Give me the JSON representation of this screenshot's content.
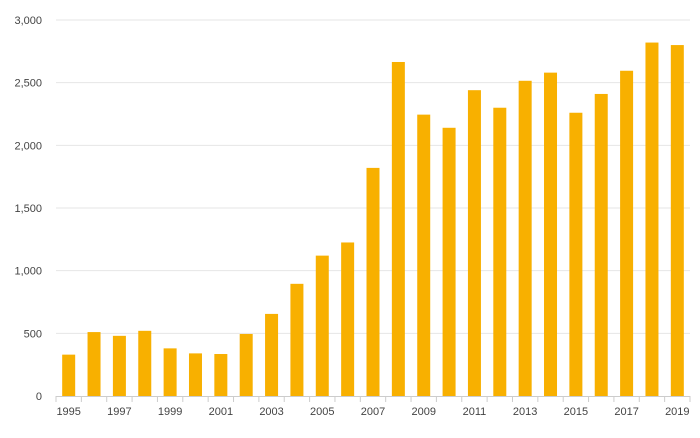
{
  "chart_data": {
    "type": "bar",
    "categories": [
      "1995",
      "1996",
      "1997",
      "1998",
      "1999",
      "2000",
      "2001",
      "2002",
      "2003",
      "2004",
      "2005",
      "2006",
      "2007",
      "2008",
      "2009",
      "2010",
      "2011",
      "2012",
      "2013",
      "2014",
      "2015",
      "2016",
      "2017",
      "2018",
      "2019"
    ],
    "values": [
      330,
      510,
      480,
      520,
      380,
      340,
      335,
      495,
      655,
      895,
      1120,
      1225,
      1820,
      2665,
      2245,
      2140,
      2440,
      2300,
      2515,
      2580,
      2260,
      2410,
      2595,
      2820,
      2800
    ],
    "x_tick_labels": [
      "1995",
      "1997",
      "1999",
      "2001",
      "2003",
      "2005",
      "2007",
      "2009",
      "2011",
      "2013",
      "2015",
      "2017",
      "2019"
    ],
    "y_tick_labels": [
      "0",
      "500",
      "1,000",
      "1,500",
      "2,000",
      "2,500",
      "3,000"
    ],
    "ylim": [
      0,
      3000
    ],
    "grid": true,
    "title": "",
    "xlabel": "",
    "ylabel": "",
    "colors": {
      "bar": "#F8B000",
      "grid": "#E6E6E6",
      "axis": "#CCCCCC",
      "text": "#444444"
    }
  }
}
